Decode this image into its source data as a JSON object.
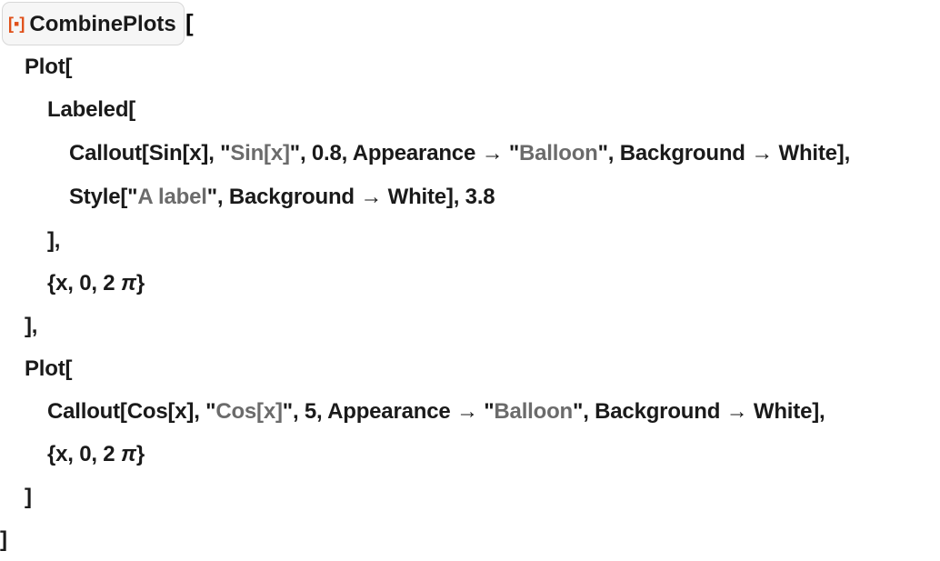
{
  "header": {
    "function_name": "CombinePlots",
    "icon": "resource-function-icon",
    "icon_color": "#e0501a",
    "open_bracket": "[",
    "icon_glyph": "[▪]"
  },
  "lines": [
    [
      {
        "t": "Plot["
      }
    ],
    [
      {
        "t": "Labeled["
      }
    ],
    [
      {
        "t": "Callout[Sin[x], \""
      },
      {
        "t": "Sin[x]",
        "s": 1
      },
      {
        "t": "\", 0.8, Appearance → \""
      },
      {
        "t": "Balloon",
        "s": 1
      },
      {
        "t": "\", Background → White],"
      }
    ],
    [
      {
        "t": "Style[\""
      },
      {
        "t": "A label",
        "s": 1
      },
      {
        "t": "\", Background → White], 3.8"
      }
    ],
    [
      {
        "t": "],"
      }
    ],
    [
      {
        "t": "{x, 0, 2 "
      },
      {
        "t": "π",
        "i": 1
      },
      {
        "t": "}"
      }
    ],
    [
      {
        "t": "],"
      }
    ],
    [
      {
        "t": "Plot["
      }
    ],
    [
      {
        "t": "Callout[Cos[x], \""
      },
      {
        "t": "Cos[x]",
        "s": 1
      },
      {
        "t": "\", 5, Appearance → \""
      },
      {
        "t": "Balloon",
        "s": 1
      },
      {
        "t": "\", Background → White],"
      }
    ],
    [
      {
        "t": "{x, 0, 2 "
      },
      {
        "t": "π",
        "i": 1
      },
      {
        "t": "}"
      }
    ],
    [
      {
        "t": "]"
      }
    ],
    [
      {
        "t": "]"
      }
    ]
  ]
}
